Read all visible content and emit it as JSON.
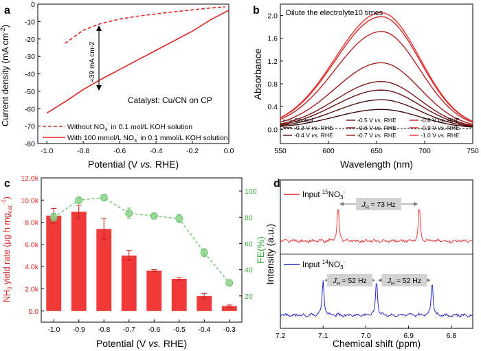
{
  "chart_data": [
    {
      "panel": "a",
      "type": "line",
      "xlabel": "Potential (V vs. RHE)",
      "ylabel": "Current density (mA cm-2)",
      "xlim": [
        -1.05,
        0.0
      ],
      "ylim": [
        -80,
        0
      ],
      "xticks": [
        "-1.0",
        "-0.8",
        "-0.6",
        "-0.4",
        "-0.2",
        "0.0"
      ],
      "yticks": [
        "0",
        "-10",
        "-20",
        "-30",
        "-40",
        "-50",
        "-60",
        "-70",
        "-80"
      ],
      "series": [
        {
          "name": "Without NO3- in 0.1 mol/L KOH solution",
          "style": "dashed",
          "x": [
            -0.9,
            -0.8,
            -0.7,
            -0.6,
            -0.5,
            -0.4,
            -0.3,
            -0.2,
            -0.1,
            -0.02
          ],
          "y": [
            -22.5,
            -15.0,
            -11.0,
            -8.6,
            -6.9,
            -5.6,
            -4.4,
            -3.3,
            -2.2,
            -1.6
          ]
        },
        {
          "name": "With 100 mmol/L NO3- in 0.1 mmol/L KOH solution",
          "style": "solid",
          "x": [
            -1.0,
            -0.9,
            -0.8,
            -0.7,
            -0.6,
            -0.5,
            -0.4,
            -0.3,
            -0.2,
            -0.1,
            0.0
          ],
          "y": [
            -62.5,
            -56.0,
            -49.0,
            -43.0,
            -37.5,
            -32.0,
            -26.5,
            -21.0,
            -15.5,
            -9.0,
            -3.5
          ]
        }
      ],
      "annotations": {
        "gap": "≈39 mA cm-2",
        "catalyst": "Catalyst: Cu/CN on CP"
      },
      "legend": {
        "l1": {
          "a": "Without NO",
          "sub": "3",
          "sup": "-",
          "b": " in 0.1 mol/L KOH solution"
        },
        "l2": {
          "a": "With 100 mmol/L NO",
          "sub": "3",
          "sup": "-",
          "b": " in 0.1 mmol/L KOH solution"
        }
      }
    },
    {
      "panel": "b",
      "type": "line",
      "title": "Dilute the electrolyte10 times",
      "xlabel": "Wavelength (nm)",
      "ylabel": "Absorbance",
      "xlim": [
        550,
        750
      ],
      "ylim": [
        -0.25,
        2.2
      ],
      "xticks": [
        "550",
        "600",
        "650",
        "700",
        "750"
      ],
      "yticks": [
        "0.0",
        "0.4",
        "0.8",
        "1.2",
        "1.6",
        "2.0"
      ],
      "peak_wavelength": 655,
      "series": [
        {
          "name": "Control",
          "peak": 0.0,
          "color": "#555555"
        },
        {
          "name": "-0.3 V vs. RHE",
          "peak": 0.33,
          "color": "#3a0a0a"
        },
        {
          "name": "-0.4 V vs. RHE",
          "peak": 0.5,
          "color": "#4d0e0e"
        },
        {
          "name": "-0.5 V vs. RHE",
          "peak": 0.67,
          "color": "#661212"
        },
        {
          "name": "-0.6 V vs. RHE",
          "peak": 0.82,
          "color": "#801717"
        },
        {
          "name": "-0.7 V vs. RHE",
          "peak": 1.15,
          "color": "#9c1c1c"
        },
        {
          "name": "-0.8 V vs. RHE",
          "peak": 1.7,
          "color": "#b82222"
        },
        {
          "name": "-0.9 V vs. RHE",
          "peak": 1.96,
          "color": "#d22828"
        },
        {
          "name": "-1.0 V vs. RHE",
          "peak": 2.03,
          "color": "#ee2f2f"
        }
      ],
      "legend_items": [
        {
          "v": "Control",
          "rhe": ""
        },
        {
          "v": "-0.5 V ",
          "rhe": "vs. RHE"
        },
        {
          "v": "-0.8 V ",
          "rhe": "vs. RHE"
        },
        {
          "v": "-0.3 V ",
          "rhe": "vs. RHE"
        },
        {
          "v": "-0.6 V ",
          "rhe": "vs. RHE"
        },
        {
          "v": "-0.9 V ",
          "rhe": "vs. RHE"
        },
        {
          "v": "-0.4 V ",
          "rhe": "vs. RHE"
        },
        {
          "v": "-0.7 V ",
          "rhe": "vs. RHE"
        },
        {
          "v": "-1.0 V ",
          "rhe": "vs. RHE"
        }
      ]
    },
    {
      "panel": "c",
      "type": "bar",
      "xlabel": "Potential (V vs. RHE)",
      "ylabel": "NH3 yield rate (μg h mgcat.-1)",
      "y2label": "FE(%)",
      "categories": [
        "-1.0",
        "-0.9",
        "-0.8",
        "-0.7",
        "-0.6",
        "-0.5",
        "-0.4",
        "-0.3"
      ],
      "ylim": [
        -1000,
        12000
      ],
      "y2lim": [
        0,
        110
      ],
      "yticks": [
        "0.0",
        "2.0k",
        "4.0k",
        "6.0k",
        "8.0k",
        "10.0k",
        "12.0k"
      ],
      "y2ticks": [
        "20",
        "40",
        "60",
        "80",
        "100"
      ],
      "series": [
        {
          "name": "NH3 yield rate",
          "values": [
            8600,
            8950,
            7400,
            5000,
            3650,
            2900,
            1350,
            450
          ],
          "errors": [
            650,
            600,
            950,
            450,
            80,
            120,
            230,
            100
          ],
          "color": "#f03a3a"
        },
        {
          "name": "FE",
          "values": [
            80,
            93,
            95,
            83,
            81,
            79,
            53,
            30
          ],
          "errors": [
            3,
            2,
            2,
            4,
            1,
            3,
            3,
            2
          ],
          "color": "#6cc56c"
        }
      ]
    },
    {
      "panel": "d",
      "type": "line",
      "xlabel": "Chemical shift (ppm)",
      "ylabel": "Intensity (a.u.)",
      "xlim": [
        7.2,
        6.75
      ],
      "xticks": [
        "7.2",
        "7.1",
        "7.0",
        "6.9",
        "6.8"
      ],
      "series": [
        {
          "name": "Input 15NO3-",
          "peaks_ppm": [
            7.065,
            6.875
          ],
          "color": "#f03a3a"
        },
        {
          "name": "Input 14NO3-",
          "peaks_ppm": [
            7.1,
            6.975,
            6.845
          ],
          "color": "#2828c8"
        }
      ],
      "legend": {
        "top": {
          "pre": "Input ",
          "sup": "15",
          "main": "NO",
          "sub": "3",
          "sup2": "-"
        },
        "bot": {
          "pre": "Input ",
          "sup": "14",
          "main": "NO",
          "sub": "3",
          "sup2": "-"
        }
      },
      "coupling": {
        "top": "≈ 73 Hz",
        "bot1": "≈ 52 Hz",
        "bot2": "≈ 52 Hz",
        "j": "J",
        "h": "H"
      }
    }
  ],
  "panel_labels": {
    "a": "a",
    "b": "b",
    "c": "c",
    "d": "d"
  }
}
